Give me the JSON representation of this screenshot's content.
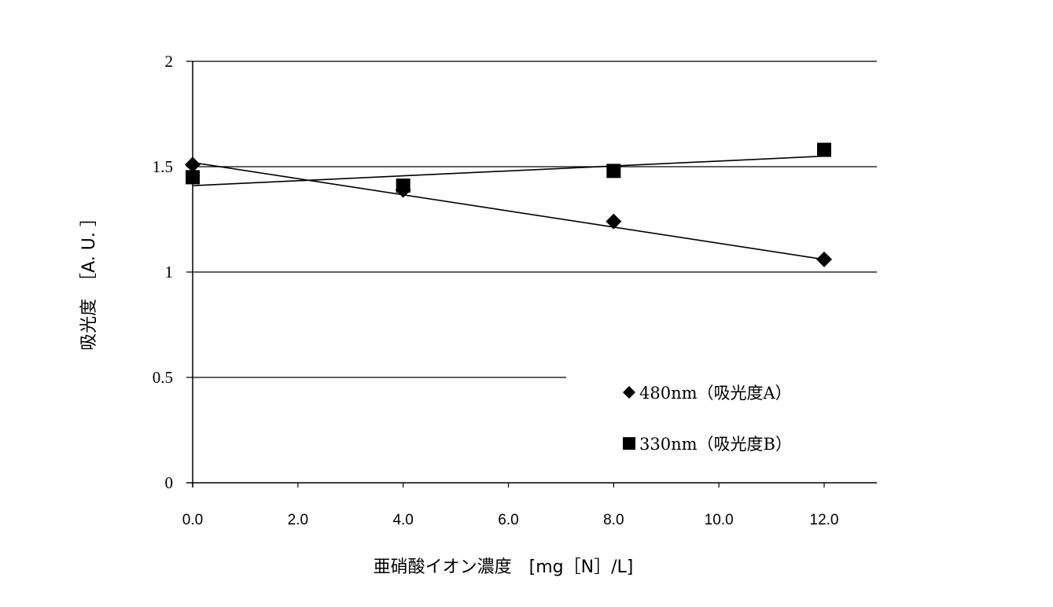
{
  "chart_data": {
    "type": "scatter",
    "title": "",
    "xlabel": "亜硝酸イオン濃度 [mg［N］/L]",
    "ylabel": "吸光度 ［A. U. ］",
    "xlim": [
      0,
      13
    ],
    "ylim": [
      0,
      2
    ],
    "x_ticks": [
      "0.0",
      "2.0",
      "4.0",
      "6.0",
      "8.0",
      "10.0",
      "12.0"
    ],
    "y_ticks": [
      "0",
      "0.5",
      "1",
      "1.5",
      "2"
    ],
    "grid": "horizontal",
    "legend_position": "inside-lower-right",
    "series": [
      {
        "name": "480nm（吸光度A）",
        "marker": "diamond",
        "color": "#000000",
        "x": [
          0,
          4,
          8,
          12
        ],
        "y": [
          1.51,
          1.39,
          1.24,
          1.06
        ],
        "trendline": {
          "type": "linear",
          "x": [
            0,
            12
          ],
          "y": [
            1.52,
            1.06
          ]
        }
      },
      {
        "name": "330nm（吸光度B）",
        "marker": "square",
        "color": "#000000",
        "x": [
          0,
          4,
          8,
          12
        ],
        "y": [
          1.45,
          1.41,
          1.48,
          1.58
        ],
        "trendline": {
          "type": "linear",
          "x": [
            0,
            12
          ],
          "y": [
            1.41,
            1.55
          ]
        }
      }
    ]
  },
  "axes": {
    "x_title": "亜硝酸イオン濃度　[mg［N］/L]",
    "y_title": "吸光度　［A. U. ］"
  },
  "legend": {
    "items": [
      {
        "symbol": "◆",
        "label": "480nm（吸光度A）"
      },
      {
        "symbol": "■",
        "label": "330nm（吸光度B）"
      }
    ]
  }
}
